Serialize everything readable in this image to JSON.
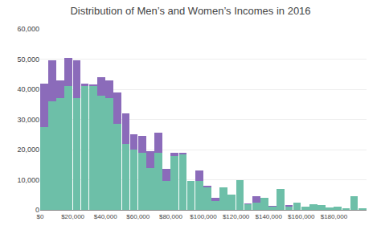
{
  "chart_data": {
    "type": "histogram",
    "title": "Distribution of Men’s and Women’s Incomes in 2016",
    "bins": [
      0,
      5000,
      10000,
      15000,
      20000,
      25000,
      30000,
      35000,
      40000,
      45000,
      50000,
      55000,
      60000,
      65000,
      70000,
      75000,
      80000,
      85000,
      90000,
      95000,
      100000,
      105000,
      110000,
      115000,
      120000,
      125000,
      130000,
      135000,
      140000,
      145000,
      150000,
      155000,
      160000,
      165000,
      170000,
      175000,
      180000,
      185000,
      190000,
      195000,
      200000
    ],
    "series": [
      {
        "color": "#8b6bba",
        "values": [
          42000,
          49500,
          43000,
          50500,
          49500,
          42000,
          41500,
          44000,
          43000,
          39000,
          32000,
          25000,
          24500,
          19500,
          25500,
          13500,
          19000,
          19000,
          9500,
          13000,
          8000,
          4000,
          7500,
          5000,
          7500,
          2200,
          4500,
          3500,
          1400,
          3500,
          1500,
          1500,
          500,
          2000,
          1500,
          900,
          500,
          500,
          500,
          0
        ]
      },
      {
        "color": "#6dbfa8",
        "values": [
          27500,
          36000,
          37000,
          41000,
          37000,
          41000,
          41000,
          38000,
          37000,
          28500,
          22000,
          20000,
          19000,
          14000,
          19000,
          9500,
          18000,
          18500,
          9500,
          9500,
          7500,
          3000,
          7500,
          5000,
          10000,
          2000,
          2500,
          4000,
          1200,
          7000,
          1200,
          2500,
          1200,
          2000,
          1500,
          900,
          1000,
          600,
          4500,
          500
        ]
      }
    ],
    "xlim": [
      0,
      200000
    ],
    "ylim": [
      0,
      60000
    ],
    "xticks": [
      {
        "value": 0,
        "label": "$0"
      },
      {
        "value": 20000,
        "label": "$20,000"
      },
      {
        "value": 40000,
        "label": "$40,000"
      },
      {
        "value": 60000,
        "label": "$60,000"
      },
      {
        "value": 80000,
        "label": "$80,000"
      },
      {
        "value": 100000,
        "label": "$100,000"
      },
      {
        "value": 120000,
        "label": "$120,000"
      },
      {
        "value": 140000,
        "label": "$140,000"
      },
      {
        "value": 160000,
        "label": "$160,000"
      },
      {
        "value": 180000,
        "label": "$180,000"
      }
    ],
    "yticks": [
      0,
      {
        "value": 10000,
        "label": "10,000"
      },
      {
        "value": 20000,
        "label": "20,000"
      },
      {
        "value": 30000,
        "label": "30,000"
      },
      {
        "value": 40000,
        "label": "40,000"
      },
      {
        "value": 50000,
        "label": "50,000"
      },
      {
        "value": 60000,
        "label": "60,000"
      }
    ],
    "grid": true
  }
}
